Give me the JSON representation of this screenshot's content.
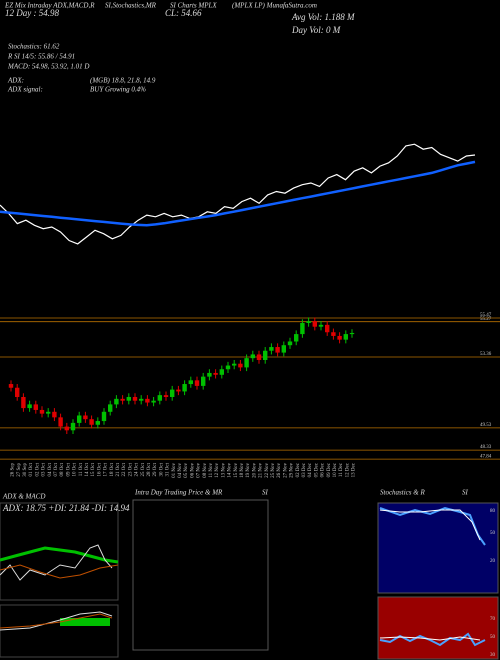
{
  "header": {
    "title_parts": [
      "EZ Mix Intraday ADX,MACD,R",
      "SI,Stochastics,MR",
      "SI Charts MPLX",
      "(MPLX LP) MunafaSutra.com"
    ],
    "day_ma": "12 Day : 54.98",
    "close": "CL: 54.66",
    "avg_vol": "Avg Vol: 1.188  M",
    "day_vol": "Day Vol: 0  M",
    "stats": [
      "Stochastics: 61.62",
      "R SI 14/5: 55.86 / 54.91",
      "MACD: 54.98, 53.92, 1.01 D"
    ],
    "adx": "ADX:",
    "adx_values": "(MGB) 18.8, 21.8, 14.9",
    "adx_signal": "ADX  signal:",
    "signal": "BUY Growing 0.4%"
  },
  "chart_data": {
    "type": "candlestick",
    "categories": [
      "26 Sep",
      "27 Sep",
      "30 Sep",
      "01 Oct",
      "02 Oct",
      "03 Oct",
      "04 Oct",
      "07 Oct",
      "08 Oct",
      "09 Oct",
      "10 Oct",
      "11 Oct",
      "14 Oct",
      "15 Oct",
      "16 Oct",
      "17 Oct",
      "18 Oct",
      "21 Oct",
      "22 Oct",
      "23 Oct",
      "24 Oct",
      "25 Oct",
      "28 Oct",
      "29 Oct",
      "30 Oct",
      "31 Oct",
      "01 Nov",
      "04 Nov",
      "05 Nov",
      "06 Nov",
      "07 Nov",
      "08 Nov",
      "11 Nov",
      "12 Nov",
      "13 Nov",
      "14 Nov",
      "15 Nov",
      "18 Nov",
      "19 Nov",
      "20 Nov",
      "21 Nov",
      "22 Nov",
      "25 Nov",
      "26 Nov",
      "27 Nov",
      "29 Nov",
      "02 Dec",
      "03 Dec",
      "04 Dec",
      "05 Dec",
      "06 Dec",
      "09 Dec",
      "10 Dec",
      "11 Dec",
      "12 Dec",
      "13 Dec"
    ],
    "open": [
      51.9,
      51.7,
      51.2,
      50.6,
      50.8,
      50.5,
      50.3,
      50.4,
      50.1,
      49.6,
      49.4,
      49.8,
      50.2,
      50.0,
      49.7,
      49.9,
      50.4,
      50.8,
      51.1,
      51.0,
      51.2,
      51.0,
      51.1,
      50.9,
      51.0,
      51.3,
      51.2,
      51.6,
      51.5,
      51.9,
      52.1,
      51.8,
      52.3,
      52.5,
      52.4,
      52.7,
      52.9,
      53.0,
      52.8,
      53.3,
      53.5,
      53.2,
      53.7,
      53.9,
      53.6,
      54.0,
      54.2,
      54.6,
      55.2,
      55.3,
      55.0,
      55.1,
      54.7,
      54.5,
      54.3,
      54.6
    ],
    "high": [
      52.1,
      51.9,
      51.4,
      51.0,
      51.0,
      50.7,
      50.6,
      50.6,
      50.3,
      49.8,
      50.0,
      50.4,
      50.4,
      50.2,
      50.1,
      50.6,
      51.0,
      51.3,
      51.3,
      51.4,
      51.4,
      51.3,
      51.3,
      51.2,
      51.5,
      51.5,
      51.8,
      51.8,
      52.1,
      52.3,
      52.3,
      52.5,
      52.7,
      52.7,
      52.9,
      53.1,
      53.2,
      53.2,
      53.5,
      53.7,
      53.7,
      53.9,
      54.1,
      54.1,
      54.2,
      54.4,
      54.8,
      55.4,
      55.5,
      55.5,
      55.3,
      55.3,
      54.9,
      54.7,
      54.8,
      54.86
    ],
    "low": [
      51.5,
      51.0,
      50.4,
      50.4,
      50.3,
      50.1,
      50.1,
      49.9,
      49.4,
      49.2,
      49.2,
      49.6,
      49.8,
      49.5,
      49.5,
      49.7,
      50.2,
      50.6,
      50.8,
      50.8,
      50.8,
      50.8,
      50.7,
      50.7,
      50.8,
      51.0,
      51.0,
      51.3,
      51.3,
      51.7,
      51.6,
      51.6,
      52.1,
      52.2,
      52.2,
      52.5,
      52.7,
      52.6,
      52.6,
      53.1,
      53.0,
      53.0,
      53.5,
      53.4,
      53.4,
      53.8,
      54.0,
      54.4,
      55.0,
      54.8,
      54.8,
      54.5,
      54.3,
      54.1,
      54.1,
      54.4
    ],
    "close": [
      51.7,
      51.2,
      50.6,
      50.8,
      50.5,
      50.3,
      50.4,
      50.1,
      49.6,
      49.4,
      49.8,
      50.2,
      50.0,
      49.7,
      49.9,
      50.4,
      50.8,
      51.1,
      51.0,
      51.2,
      51.0,
      51.1,
      50.9,
      51.0,
      51.3,
      51.2,
      51.6,
      51.5,
      51.9,
      52.1,
      51.8,
      52.3,
      52.5,
      52.4,
      52.7,
      52.9,
      53.0,
      52.8,
      53.3,
      53.5,
      53.2,
      53.7,
      53.9,
      53.6,
      54.0,
      54.2,
      54.6,
      55.2,
      55.3,
      55.0,
      55.1,
      54.7,
      54.5,
      54.3,
      54.6,
      54.66
    ],
    "ma": [
      51.3,
      51.25,
      51.2,
      51.15,
      51.1,
      51.05,
      51.0,
      50.95,
      50.9,
      50.85,
      50.8,
      50.75,
      50.7,
      50.65,
      50.6,
      50.55,
      50.52,
      50.5,
      50.55,
      50.62,
      50.7,
      50.78,
      50.86,
      50.94,
      51.02,
      51.1,
      51.2,
      51.3,
      51.4,
      51.5,
      51.6,
      51.7,
      51.8,
      51.9,
      52.0,
      52.1,
      52.2,
      52.3,
      52.4,
      52.5,
      52.6,
      52.7,
      52.8,
      52.9,
      53.0,
      53.1,
      53.2,
      53.3,
      53.4,
      53.5,
      53.6,
      53.75,
      53.9,
      54.05,
      54.15,
      54.25
    ],
    "up_color": "#00c000",
    "down_color": "#e00000",
    "ma_color": "#1060ff",
    "line_color": "#ffffff",
    "grid_color": "#b87000",
    "yticks": [
      55.47,
      55.27,
      53.36,
      49.53,
      48.33,
      47.84
    ]
  },
  "panels": [
    {
      "title": "ADX  & MACD",
      "subtitle": "ADX: 18.75  +DI: 21.84  -DI: 14.94"
    },
    {
      "title": "Intra Day Trading Price  & MR",
      "title2": "SI"
    },
    {
      "title": "Stochastics  & R",
      "title2": "SI",
      "ticks": [
        "80",
        "50",
        "20"
      ],
      "rsi_ticks": [
        "70",
        "50",
        "30"
      ]
    }
  ]
}
